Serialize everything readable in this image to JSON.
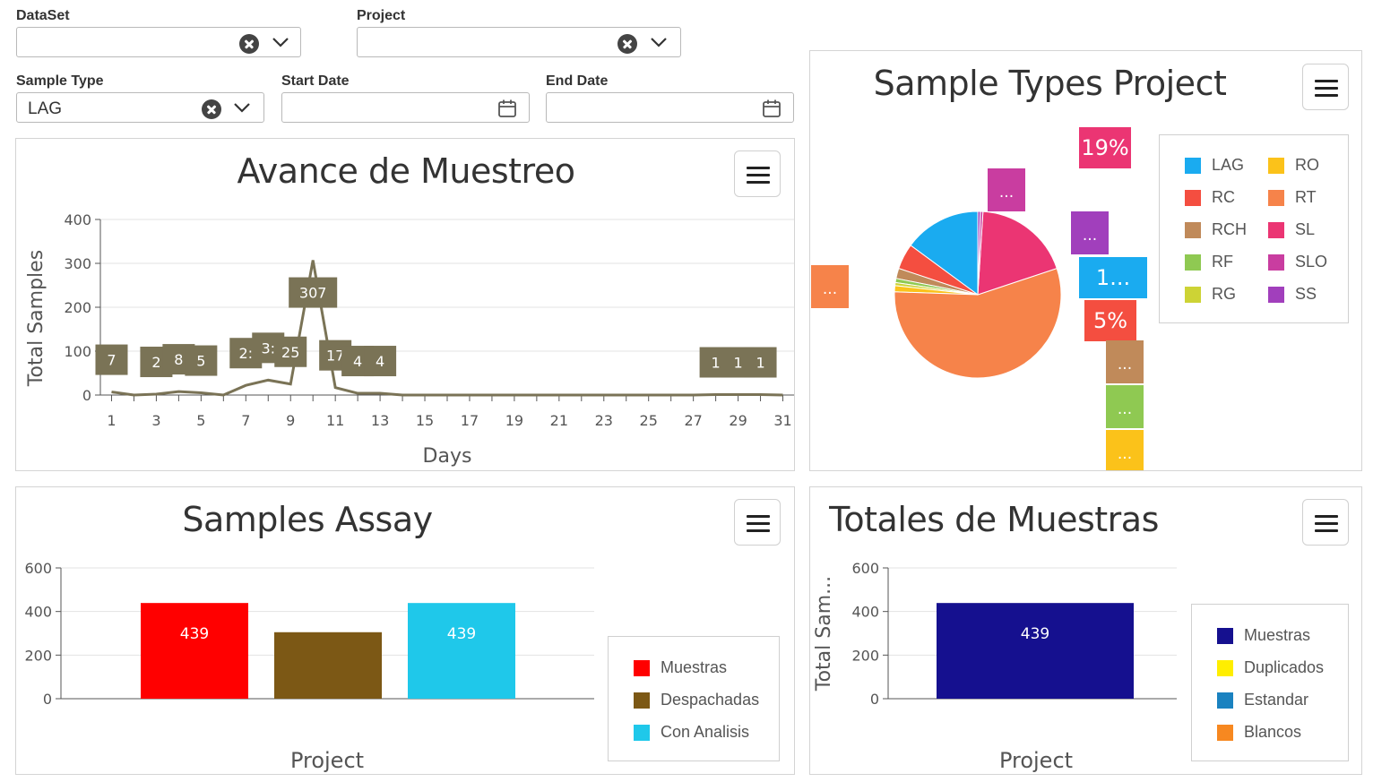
{
  "filters": {
    "dataset": {
      "label": "DataSet",
      "value": ""
    },
    "project": {
      "label": "Project",
      "value": ""
    },
    "sample_type": {
      "label": "Sample Type",
      "value": "LAG"
    },
    "start_date": {
      "label": "Start Date",
      "value": ""
    },
    "end_date": {
      "label": "End Date",
      "value": ""
    }
  },
  "avance": {
    "title": "Avance de Muestreo",
    "chart_data": {
      "type": "line",
      "title": "Avance de Muestreo",
      "xlabel": "Days",
      "ylabel": "Total Samples",
      "xlim": [
        0.5,
        31.5
      ],
      "ylim": [
        0,
        400
      ],
      "y_ticks": [
        0,
        100,
        200,
        300,
        400
      ],
      "x_ticks": [
        1,
        3,
        5,
        7,
        9,
        11,
        13,
        15,
        17,
        19,
        21,
        23,
        25,
        27,
        29,
        31
      ],
      "color": "#7a7356",
      "points": [
        [
          1,
          7
        ],
        [
          2,
          0
        ],
        [
          3,
          2
        ],
        [
          4,
          8
        ],
        [
          5,
          5
        ],
        [
          6,
          0
        ],
        [
          7,
          22
        ],
        [
          8,
          34
        ],
        [
          9,
          25
        ],
        [
          10,
          307
        ],
        [
          11,
          17
        ],
        [
          12,
          4
        ],
        [
          13,
          4
        ],
        [
          14,
          0
        ],
        [
          15,
          0
        ],
        [
          16,
          0
        ],
        [
          17,
          0
        ],
        [
          18,
          0
        ],
        [
          19,
          0
        ],
        [
          20,
          0
        ],
        [
          21,
          0
        ],
        [
          22,
          0
        ],
        [
          23,
          0
        ],
        [
          24,
          0
        ],
        [
          25,
          0
        ],
        [
          26,
          0
        ],
        [
          27,
          0
        ],
        [
          28,
          1
        ],
        [
          29,
          1
        ],
        [
          30,
          1
        ],
        [
          31,
          0
        ]
      ],
      "labels": [
        {
          "x": 1,
          "text": "7"
        },
        {
          "x": 3,
          "text": "2"
        },
        {
          "x": 4,
          "text": "8"
        },
        {
          "x": 5,
          "text": "5"
        },
        {
          "x": 7,
          "text": "2:"
        },
        {
          "x": 8,
          "text": "3:"
        },
        {
          "x": 9,
          "text": "25"
        },
        {
          "x": 10,
          "text": "307"
        },
        {
          "x": 11,
          "text": "17"
        },
        {
          "x": 12,
          "text": "4"
        },
        {
          "x": 13,
          "text": "4"
        },
        {
          "x": 28,
          "text": "1"
        },
        {
          "x": 29,
          "text": "1"
        },
        {
          "x": 30,
          "text": "1"
        }
      ]
    }
  },
  "types": {
    "title": "Sample Types Project",
    "chart_data": {
      "type": "pie",
      "title": "Sample Types Project",
      "slices": [
        {
          "name": "LAG",
          "value": 15,
          "color": "#1aabf0",
          "label": "1..."
        },
        {
          "name": "RC",
          "value": 5,
          "color": "#f44e40",
          "label": "5%"
        },
        {
          "name": "RCH",
          "value": 2,
          "color": "#c08a5a",
          "label": "..."
        },
        {
          "name": "RF",
          "value": 0.8,
          "color": "#8fc952",
          "label": "..."
        },
        {
          "name": "RG",
          "value": 0.6,
          "color": "#cdd335",
          "label": ""
        },
        {
          "name": "RO",
          "value": 1.2,
          "color": "#fbc21a",
          "label": "..."
        },
        {
          "name": "RT",
          "value": 56,
          "color": "#f6834a",
          "label": "..."
        },
        {
          "name": "SL",
          "value": 19,
          "color": "#eb3573",
          "label": "19%"
        },
        {
          "name": "SLO",
          "value": 0.5,
          "color": "#c93da0",
          "label": "..."
        },
        {
          "name": "SS",
          "value": 0.5,
          "color": "#a13fbc",
          "label": "..."
        }
      ]
    }
  },
  "assay": {
    "title": "Samples Assay",
    "chart_data": {
      "type": "bar",
      "title": "Samples Assay",
      "xlabel": "Project",
      "ylabel": "",
      "ylim": [
        0,
        600
      ],
      "y_ticks": [
        0,
        200,
        400,
        600
      ],
      "categories": [
        "Project"
      ],
      "series": [
        {
          "name": "Muestras",
          "values": [
            439
          ],
          "color": "#ff0000",
          "label": "439"
        },
        {
          "name": "Despachadas",
          "values": [
            305
          ],
          "color": "#7c5815",
          "label": ""
        },
        {
          "name": "Con Analisis",
          "values": [
            439
          ],
          "color": "#1fc8ea",
          "label": "439"
        }
      ]
    }
  },
  "totales": {
    "title": "Totales de Muestras",
    "chart_data": {
      "type": "bar",
      "title": "Totales de Muestras",
      "xlabel": "Project",
      "ylabel": "Total Sam...",
      "ylim": [
        0,
        600
      ],
      "y_ticks": [
        0,
        200,
        400,
        600
      ],
      "categories": [
        "Project"
      ],
      "series": [
        {
          "name": "Muestras",
          "values": [
            439
          ],
          "color": "#15108f",
          "label": "439"
        },
        {
          "name": "Duplicados",
          "values": [
            0
          ],
          "color": "#ffee00",
          "label": ""
        },
        {
          "name": "Estandar",
          "values": [
            0
          ],
          "color": "#1a82c0",
          "label": ""
        },
        {
          "name": "Blancos",
          "values": [
            0
          ],
          "color": "#f78820",
          "label": ""
        }
      ]
    }
  }
}
